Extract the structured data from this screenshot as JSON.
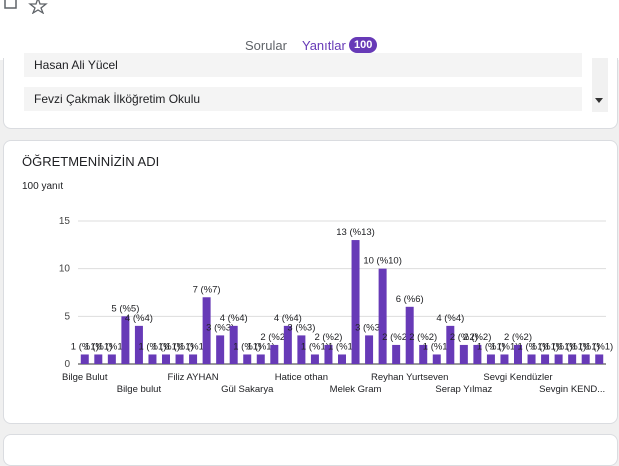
{
  "header": {
    "tabs": [
      "Sorular",
      "Yanıtlar"
    ],
    "badge": "100"
  },
  "list": {
    "items": [
      "Hasan Ali Yücel",
      "Fevzi Çakmak İlköğretim Okulu"
    ]
  },
  "chart_data": {
    "type": "bar",
    "title": "ÖĞRETMENİNİZİN ADI",
    "subtitle": "100 yanıt",
    "categories": [
      "Bilge Bulut",
      null,
      null,
      null,
      "Bilge bulut",
      null,
      null,
      null,
      "Filiz AYHAN",
      null,
      null,
      null,
      "Gül Sakarya",
      null,
      null,
      null,
      "Hatice othan",
      null,
      null,
      null,
      "Melek Gram",
      null,
      null,
      null,
      "Reyhan Yurtseven",
      null,
      null,
      null,
      "Serap Yılmaz",
      null,
      null,
      null,
      "Sevgi Kendüzler",
      null,
      null,
      null,
      "Sevgin KEND...",
      null,
      null
    ],
    "values": [
      1,
      1,
      1,
      5,
      4,
      1,
      1,
      1,
      1,
      7,
      3,
      4,
      1,
      1,
      2,
      4,
      3,
      1,
      2,
      1,
      13,
      3,
      10,
      2,
      6,
      2,
      1,
      4,
      2,
      2,
      1,
      1,
      2,
      1,
      1,
      1,
      1,
      1,
      1
    ],
    "value_labels": [
      "1 (%1)",
      "1 (%1)",
      "1 (%1)",
      "5 (%5)",
      "4 (%4)",
      "1 (%1)",
      "1 (%1)",
      "1 (%1)",
      "1 (%1)",
      "7 (%7)",
      "3 (%3)",
      "4 (%4)",
      "1 (%1)",
      "1 (%1)",
      "2 (%2)",
      "4 (%4)",
      "3 (%3)",
      "1 (%1)",
      "2 (%2)",
      "1 (%1)",
      "13 (%13)",
      "3 (%3)",
      "10 (%10)",
      "2 (%2)",
      "6 (%6)",
      "2 (%2)",
      "1 (%1)",
      "4 (%4)",
      "2 (%2)",
      "2 (%2)",
      "1 (%1)",
      "1 (%1)",
      "2 (%2)",
      "1 (%1)",
      "1 (%1)",
      "1 (%1)",
      "1 (%1)",
      "1 (%1)",
      "1 (%1)"
    ],
    "color": "#673ab7",
    "ylim": [
      0,
      15
    ],
    "yticks": [
      0,
      5,
      10,
      15
    ],
    "grid": true
  }
}
